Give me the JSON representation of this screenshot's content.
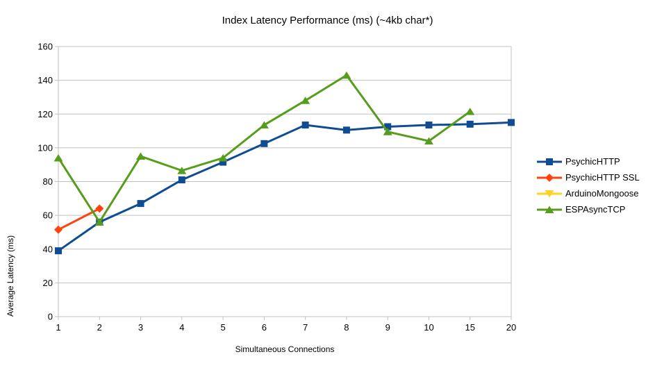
{
  "chart_data": {
    "type": "line",
    "title": "Index Latency Performance (ms) (~4kb char*)",
    "xlabel": "Simultaneous Connections",
    "ylabel": "Average Latency (ms)",
    "categories": [
      "1",
      "2",
      "3",
      "4",
      "5",
      "6",
      "7",
      "8",
      "9",
      "10",
      "15",
      "20"
    ],
    "ylim": [
      0,
      160
    ],
    "ytick_step": 20,
    "yticks": [
      0,
      20,
      40,
      60,
      80,
      100,
      120,
      140,
      160
    ],
    "grid": "horizontal",
    "legend_position": "right",
    "colors": {
      "background": "#ffffff",
      "gridline": "#c0c0c0",
      "text": "#000000"
    },
    "series": [
      {
        "name": "PsychicHTTP",
        "color": "#0f4c91",
        "marker": "square",
        "values": [
          39,
          56,
          67,
          81,
          91.5,
          102.5,
          113.5,
          110.5,
          112.5,
          113.5,
          114,
          115
        ]
      },
      {
        "name": "PsychicHTTP SSL",
        "color": "#ff420e",
        "marker": "diamond",
        "values": [
          51.5,
          64,
          null,
          null,
          null,
          null,
          null,
          null,
          null,
          null,
          null,
          null
        ]
      },
      {
        "name": "ArduinoMongoose",
        "color": "#ffd320",
        "marker": "triangle-down",
        "values": [
          null,
          null,
          null,
          null,
          null,
          null,
          null,
          null,
          null,
          null,
          null,
          null
        ]
      },
      {
        "name": "ESPAsyncTCP",
        "color": "#579d1c",
        "marker": "triangle-up",
        "values": [
          94,
          56,
          95,
          86.5,
          94,
          113.5,
          128,
          143,
          109.5,
          104,
          121.5,
          null
        ]
      }
    ]
  }
}
